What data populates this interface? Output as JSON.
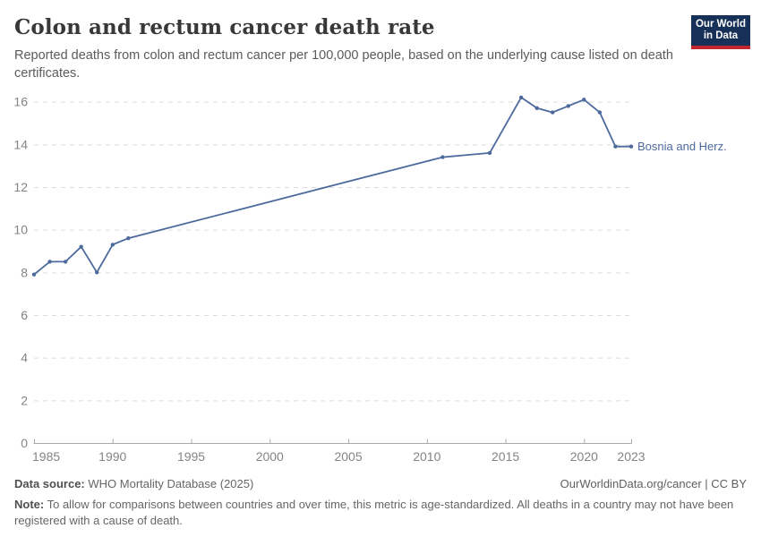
{
  "header": {
    "title": "Colon and rectum cancer death rate",
    "subtitle": "Reported deaths from colon and rectum cancer per 100,000 people, based on the underlying cause listed on death certificates.",
    "logo": {
      "line1": "Our World",
      "line2": "in Data"
    }
  },
  "chart_data": {
    "type": "line",
    "title": "Colon and rectum cancer death rate",
    "x": [
      1985,
      1986,
      1987,
      1988,
      1989,
      1990,
      1991,
      2011,
      2014,
      2016,
      2017,
      2018,
      2019,
      2020,
      2021,
      2022,
      2023
    ],
    "series": [
      {
        "name": "Bosnia and Herz.",
        "color": "#4c6a9c",
        "values": [
          7.9,
          8.5,
          8.5,
          9.2,
          8.0,
          9.3,
          9.6,
          13.4,
          13.6,
          16.2,
          15.7,
          15.5,
          15.8,
          16.1,
          15.5,
          13.9,
          13.9
        ]
      }
    ],
    "x_ticks": [
      1985,
      1990,
      1995,
      2000,
      2005,
      2010,
      2015,
      2020,
      2023
    ],
    "y_ticks": [
      0,
      2,
      4,
      6,
      8,
      10,
      12,
      14,
      16
    ],
    "xlim": [
      1985,
      2023
    ],
    "ylim": [
      0,
      16
    ],
    "xlabel": "",
    "ylabel": "",
    "grid": "horizontal-dashed",
    "legend_position": "end-of-line-label",
    "notes": "Line interpolates directly across missing years 1992-2010, 2012-2013 and 2015"
  },
  "colors": {
    "line": "#4c6a9c",
    "grid": "#dcdcdc",
    "axis": "#a9a9a9",
    "tick_text": "#848484",
    "logo_bg": "#163058",
    "logo_bar": "#c2262e"
  },
  "footer": {
    "source_label": "Data source:",
    "source_value": "WHO Mortality Database (2025)",
    "rights": "OurWorldinData.org/cancer | CC BY",
    "note_label": "Note:",
    "note_value": "To allow for comparisons between countries and over time, this metric is age-standardized. All deaths in a country may not have been registered with a cause of death."
  }
}
